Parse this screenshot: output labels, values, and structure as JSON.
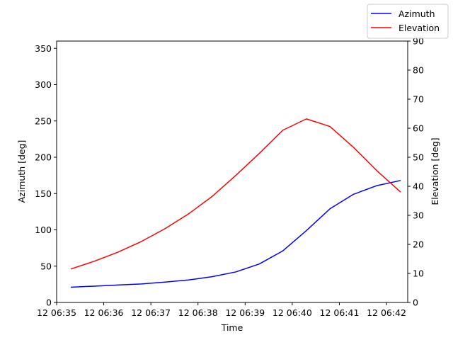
{
  "chart_data": {
    "type": "line",
    "xlabel": "Time",
    "ylabel_left": "Azimuth [deg]",
    "ylabel_right": "Elevation [deg]",
    "x_ticks": [
      "12 06:35",
      "12 06:36",
      "12 06:37",
      "12 06:38",
      "12 06:39",
      "12 06:40",
      "12 06:41",
      "12 06:42"
    ],
    "x_minutes": [
      35.3,
      35.8,
      36.3,
      36.8,
      37.3,
      37.8,
      38.3,
      38.8,
      39.3,
      39.8,
      40.3,
      40.8,
      41.3,
      41.8,
      42.3
    ],
    "xlim": [
      35.0,
      42.45
    ],
    "left_axis": {
      "ylim": [
        0,
        360
      ],
      "ticks": [
        0,
        50,
        100,
        150,
        200,
        250,
        300,
        350
      ]
    },
    "right_axis": {
      "ylim": [
        0,
        90
      ],
      "ticks": [
        0,
        10,
        20,
        30,
        40,
        50,
        60,
        70,
        80,
        90
      ]
    },
    "series": [
      {
        "name": "Azimuth",
        "axis": "left",
        "color": "#0000ff",
        "values": [
          21,
          22.5,
          24,
          25.5,
          28,
          31,
          35.5,
          42,
          53,
          71,
          99,
          129,
          149,
          161,
          168
        ]
      },
      {
        "name": "Elevation",
        "axis": "right",
        "color": "#ff0000",
        "values": [
          11.5,
          14.2,
          17.3,
          21,
          25.4,
          30.5,
          36.5,
          43.7,
          51.3,
          59.3,
          63.2,
          60.6,
          53.4,
          45.3,
          38
        ]
      }
    ],
    "legend_position": "top-right",
    "grid": false
  }
}
